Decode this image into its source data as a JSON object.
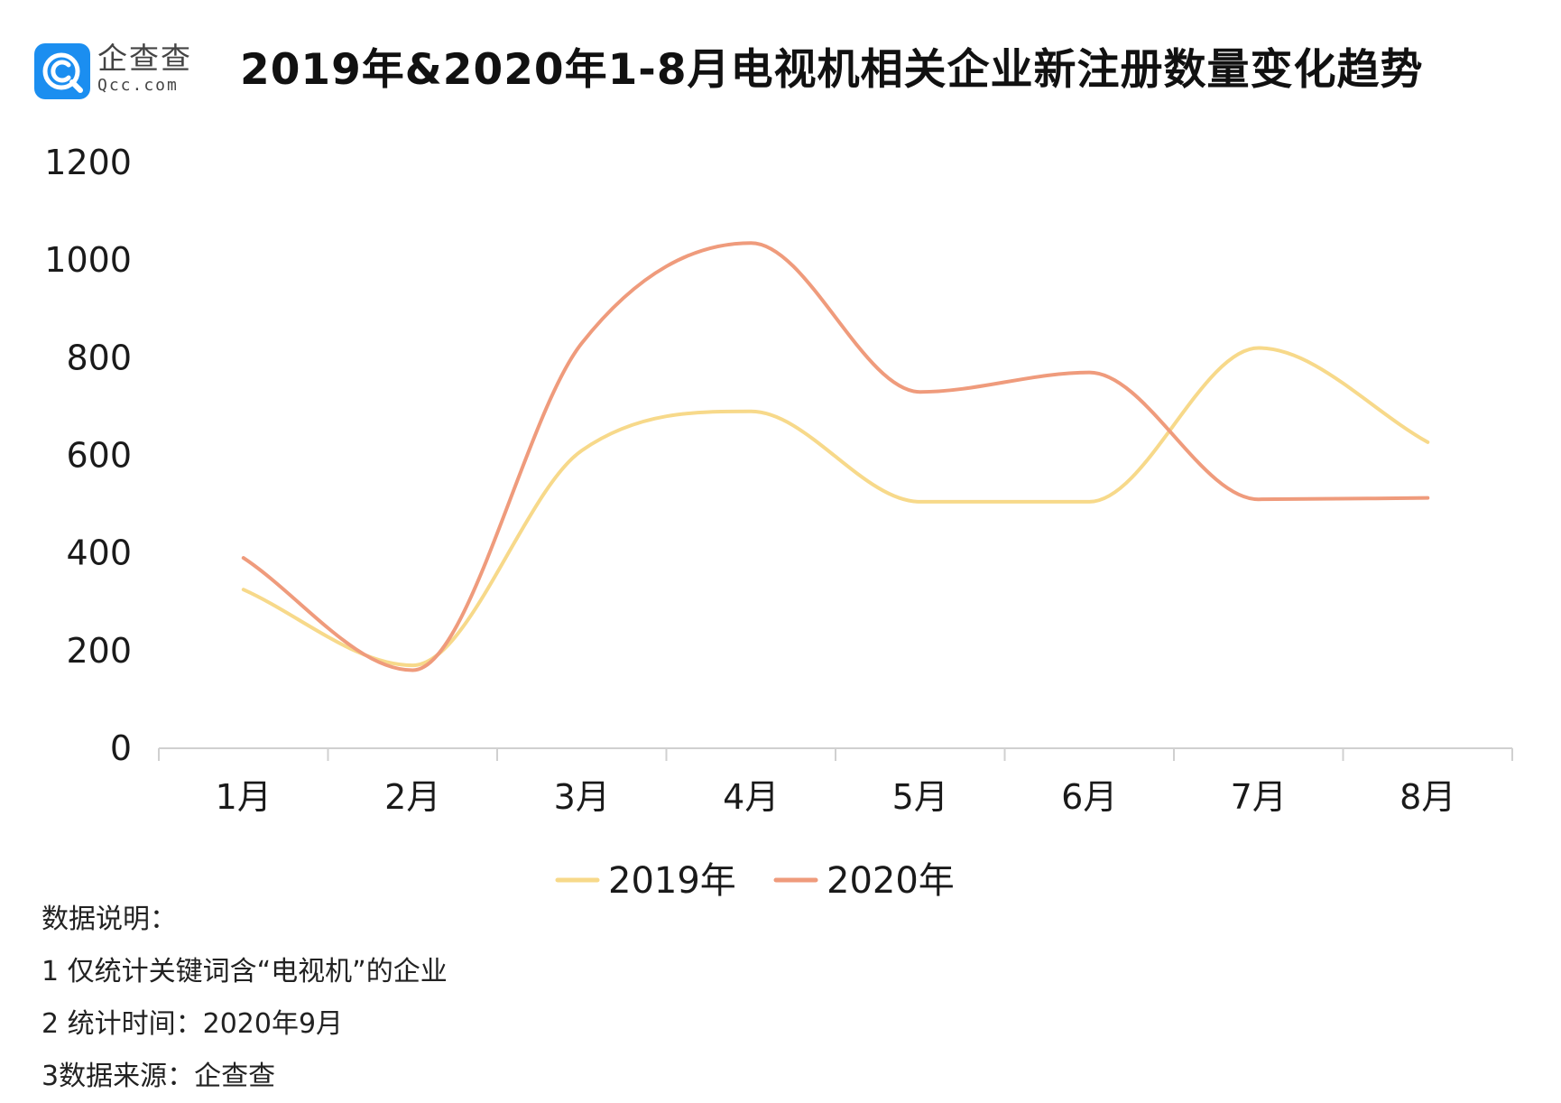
{
  "header": {
    "logo_cn": "企查查",
    "logo_en": "Qcc.com",
    "title": "2019年&2020年1-8月电视机相关企业新注册数量变化趋势"
  },
  "chart_data": {
    "type": "line",
    "categories": [
      "1月",
      "2月",
      "3月",
      "4月",
      "5月",
      "6月",
      "7月",
      "8月"
    ],
    "series": [
      {
        "name": "2019年",
        "color": "#f7d98a",
        "values": [
          325,
          170,
          610,
          690,
          505,
          505,
          820,
          627
        ]
      },
      {
        "name": "2020年",
        "color": "#ef9b7c",
        "values": [
          390,
          160,
          830,
          1035,
          730,
          770,
          510,
          513
        ]
      }
    ],
    "yticks": [
      0,
      200,
      400,
      600,
      800,
      1000,
      1200
    ],
    "ylim": [
      0,
      1200
    ],
    "smooth": true,
    "grid": false,
    "legend": "bottom"
  },
  "notes": {
    "heading": "数据说明：",
    "items": [
      "1 仅统计关键词含“电视机”的企业",
      "2 统计时间：2020年9月",
      "3数据来源：企查查"
    ]
  }
}
